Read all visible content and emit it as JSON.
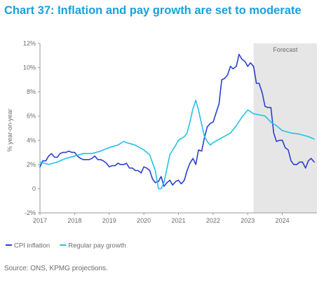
{
  "chart_data": {
    "type": "line",
    "title": "Chart 37: Inflation and pay growth are set to moderate",
    "ylabel": "% year-on-year",
    "xlabel": "",
    "ylim": [
      -2,
      12
    ],
    "xlim": [
      2017.0,
      2025.0
    ],
    "y_ticks": [
      -2,
      0,
      2,
      4,
      6,
      8,
      10,
      12
    ],
    "y_tick_labels": [
      "-2%",
      "0",
      "2%",
      "4%",
      "6%",
      "8%",
      "10%",
      "12%"
    ],
    "x_ticks": [
      2017,
      2018,
      2019,
      2020,
      2021,
      2022,
      2023,
      2024
    ],
    "x_tick_labels": [
      "2017",
      "2018",
      "2019",
      "2020",
      "2021",
      "2022",
      "2023",
      "2024"
    ],
    "grid": false,
    "forecast": {
      "label": "Forecast",
      "start": 2023.17,
      "end": 2025.0,
      "color": "#e6e6e6"
    },
    "legend_position": "bottom-left",
    "series": [
      {
        "name": "CPI inflation",
        "color": "#2a3fd0",
        "x": [
          2017.0,
          2017.08,
          2017.17,
          2017.25,
          2017.33,
          2017.42,
          2017.5,
          2017.58,
          2017.67,
          2017.75,
          2017.83,
          2017.92,
          2018.0,
          2018.08,
          2018.17,
          2018.25,
          2018.33,
          2018.42,
          2018.5,
          2018.58,
          2018.67,
          2018.75,
          2018.83,
          2018.92,
          2019.0,
          2019.08,
          2019.17,
          2019.25,
          2019.33,
          2019.42,
          2019.5,
          2019.58,
          2019.67,
          2019.75,
          2019.83,
          2019.92,
          2020.0,
          2020.08,
          2020.17,
          2020.25,
          2020.33,
          2020.42,
          2020.5,
          2020.58,
          2020.67,
          2020.75,
          2020.83,
          2020.92,
          2021.0,
          2021.08,
          2021.17,
          2021.25,
          2021.33,
          2021.42,
          2021.5,
          2021.58,
          2021.67,
          2021.75,
          2021.83,
          2021.92,
          2022.0,
          2022.08,
          2022.17,
          2022.25,
          2022.33,
          2022.42,
          2022.5,
          2022.58,
          2022.67,
          2022.75,
          2022.83,
          2022.92,
          2023.0,
          2023.08,
          2023.17,
          2023.25,
          2023.33,
          2023.42,
          2023.5,
          2023.58,
          2023.67,
          2023.75,
          2023.83,
          2023.92,
          2024.0,
          2024.08,
          2024.17,
          2024.25,
          2024.33,
          2024.42,
          2024.5,
          2024.58,
          2024.67,
          2024.75,
          2024.83,
          2024.92
        ],
        "values": [
          1.8,
          2.3,
          2.3,
          2.7,
          2.9,
          2.6,
          2.6,
          2.9,
          3.0,
          3.0,
          3.1,
          3.0,
          3.0,
          2.7,
          2.5,
          2.4,
          2.4,
          2.4,
          2.5,
          2.7,
          2.4,
          2.4,
          2.3,
          2.1,
          1.8,
          1.9,
          1.9,
          2.1,
          2.0,
          2.0,
          2.1,
          1.7,
          1.7,
          1.5,
          1.5,
          1.3,
          1.8,
          1.7,
          1.5,
          0.8,
          0.5,
          0.6,
          1.0,
          0.2,
          0.5,
          0.7,
          0.3,
          0.6,
          0.7,
          0.4,
          0.7,
          1.5,
          2.1,
          2.5,
          2.0,
          3.2,
          3.1,
          4.2,
          5.1,
          5.4,
          5.5,
          6.2,
          7.0,
          9.0,
          9.1,
          9.4,
          10.1,
          9.9,
          10.1,
          11.1,
          10.7,
          10.5,
          10.1,
          10.4,
          10.1,
          8.7,
          8.7,
          7.9,
          6.8,
          6.7,
          6.7,
          4.6,
          3.9,
          4.0,
          4.0,
          3.4,
          3.2,
          2.3,
          2.0,
          2.0,
          2.2,
          2.2,
          1.7,
          2.3,
          2.5,
          2.2
        ]
      },
      {
        "name": "Regular pay growth",
        "color": "#22c2e6",
        "x": [
          2017.0,
          2017.25,
          2017.5,
          2017.75,
          2018.0,
          2018.25,
          2018.5,
          2018.75,
          2019.0,
          2019.25,
          2019.42,
          2019.5,
          2019.75,
          2020.0,
          2020.17,
          2020.33,
          2020.42,
          2020.5,
          2020.58,
          2020.67,
          2020.75,
          2020.92,
          2021.0,
          2021.17,
          2021.25,
          2021.33,
          2021.42,
          2021.5,
          2021.58,
          2021.67,
          2021.75,
          2021.83,
          2021.92,
          2022.0,
          2022.25,
          2022.5,
          2022.67,
          2022.83,
          2023.0,
          2023.17,
          2023.33,
          2023.5,
          2023.67,
          2023.83,
          2024.0,
          2024.25,
          2024.5,
          2024.75,
          2024.92
        ],
        "values": [
          2.2,
          2.0,
          2.2,
          2.5,
          2.7,
          2.9,
          2.9,
          3.1,
          3.4,
          3.6,
          3.9,
          3.8,
          3.6,
          3.2,
          2.8,
          1.5,
          0.0,
          0.0,
          0.5,
          1.7,
          2.8,
          3.6,
          4.0,
          4.3,
          4.6,
          5.5,
          6.6,
          7.3,
          6.5,
          5.3,
          4.3,
          3.9,
          3.6,
          3.8,
          4.2,
          4.6,
          5.2,
          5.9,
          6.5,
          6.2,
          6.1,
          6.0,
          5.5,
          5.2,
          4.8,
          4.6,
          4.5,
          4.3,
          4.1
        ]
      }
    ]
  },
  "footer": {
    "source": "Source: ONS, KPMG projections."
  }
}
